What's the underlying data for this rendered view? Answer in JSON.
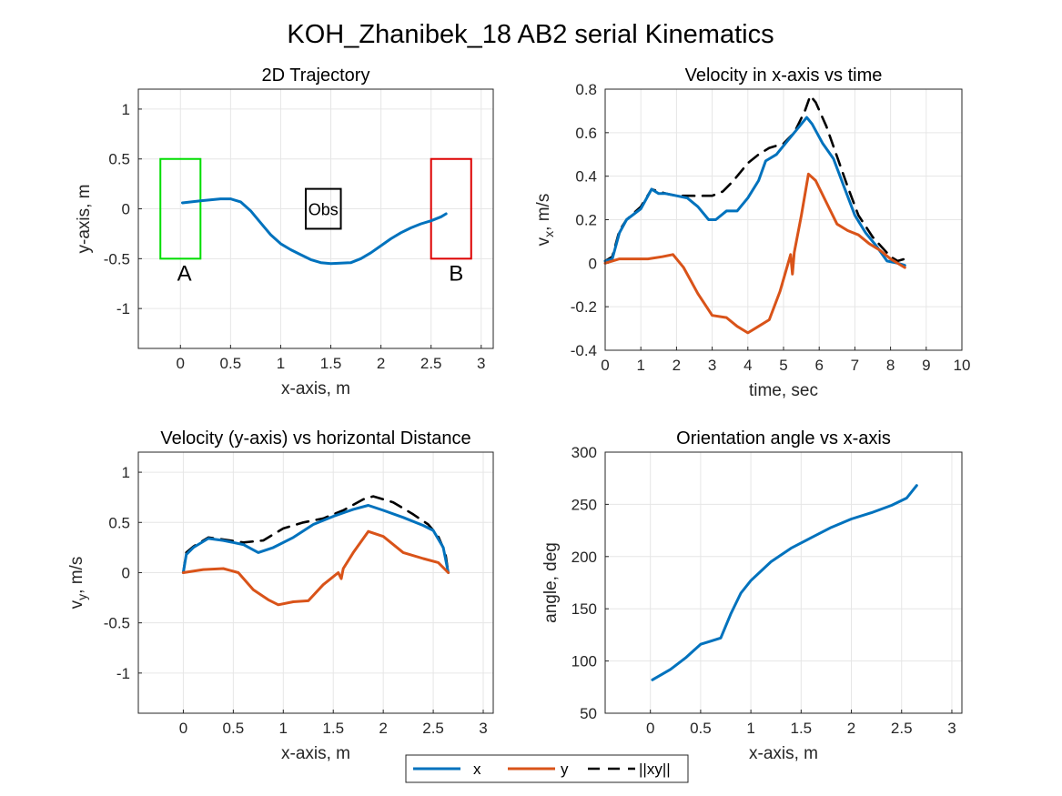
{
  "figure": {
    "suptitle": "KOH_Zhanibek_18    AB2    serial    Kinematics"
  },
  "legend": {
    "entries": [
      {
        "label": "x",
        "color": "#0072BD",
        "style": "solid"
      },
      {
        "label": "y",
        "color": "#D95319",
        "style": "solid"
      },
      {
        "label": "||xy||",
        "color": "#000000",
        "style": "dashed"
      }
    ]
  },
  "chart_data": [
    {
      "id": "traj",
      "type": "line",
      "title": "2D Trajectory",
      "xlabel": "x-axis, m",
      "ylabel": "y-axis, m",
      "xlim": [
        -0.42,
        3.12
      ],
      "ylim": [
        -1.4,
        1.2
      ],
      "xticks": [
        0,
        0.5,
        1,
        1.5,
        2,
        2.5,
        3
      ],
      "xticklabels": [
        "0",
        "0.5",
        "1",
        "1.5",
        "2",
        "2.5",
        "3"
      ],
      "yticks": [
        -1,
        -0.5,
        0,
        0.5,
        1
      ],
      "yticklabels": [
        "-1",
        "-0.5",
        "0",
        "0.5",
        "1"
      ],
      "grid": true,
      "series": [
        {
          "key": "x",
          "color": "#0072BD",
          "dashed": false,
          "points": [
            [
              0.02,
              0.06
            ],
            [
              0.2,
              0.08
            ],
            [
              0.4,
              0.1
            ],
            [
              0.5,
              0.1
            ],
            [
              0.6,
              0.07
            ],
            [
              0.7,
              -0.02
            ],
            [
              0.8,
              -0.14
            ],
            [
              0.9,
              -0.26
            ],
            [
              1.0,
              -0.35
            ],
            [
              1.1,
              -0.41
            ],
            [
              1.2,
              -0.46
            ],
            [
              1.3,
              -0.51
            ],
            [
              1.4,
              -0.54
            ],
            [
              1.5,
              -0.55
            ],
            [
              1.7,
              -0.54
            ],
            [
              1.8,
              -0.5
            ],
            [
              1.9,
              -0.44
            ],
            [
              2.0,
              -0.37
            ],
            [
              2.1,
              -0.3
            ],
            [
              2.2,
              -0.24
            ],
            [
              2.3,
              -0.19
            ],
            [
              2.4,
              -0.15
            ],
            [
              2.5,
              -0.12
            ],
            [
              2.6,
              -0.08
            ],
            [
              2.65,
              -0.05
            ]
          ]
        }
      ],
      "regions": [
        {
          "label": "A",
          "x": [
            -0.2,
            0.2
          ],
          "y": [
            -0.5,
            0.5
          ],
          "color": "#00DD00",
          "label_pos": [
            0.04,
            -0.63
          ]
        },
        {
          "label": "B",
          "x": [
            2.5,
            2.9
          ],
          "y": [
            -0.5,
            0.5
          ],
          "color": "#DD0000",
          "label_pos": [
            2.75,
            -0.63
          ]
        }
      ],
      "obstacle": {
        "label": "Obs",
        "x": [
          1.25,
          1.6
        ],
        "y": [
          -0.2,
          0.2
        ],
        "color": "#000000"
      }
    },
    {
      "id": "vt",
      "type": "line",
      "title": "Velocity in x-axis vs time",
      "xlabel": "time, sec",
      "ylabel_main": "v",
      "ylabel_sub": "x",
      "ylabel_rest": ", m/s",
      "xlim": [
        0,
        10
      ],
      "ylim": [
        -0.4,
        0.8
      ],
      "xticks": [
        0,
        1,
        2,
        3,
        4,
        5,
        6,
        7,
        8,
        9,
        10
      ],
      "xticklabels": [
        "0",
        "1",
        "2",
        "3",
        "4",
        "5",
        "6",
        "7",
        "8",
        "9",
        "10"
      ],
      "yticks": [
        -0.4,
        -0.2,
        0,
        0.2,
        0.4,
        0.6,
        0.8
      ],
      "yticklabels": [
        "-0.4",
        "-0.2",
        "0",
        "0.2",
        "0.4",
        "0.6",
        "0.8"
      ],
      "grid": true,
      "series": [
        {
          "key": "xy",
          "color": "#000000",
          "dashed": true,
          "points": [
            [
              0,
              0.01
            ],
            [
              0.2,
              0.03
            ],
            [
              0.4,
              0.15
            ],
            [
              0.6,
              0.2
            ],
            [
              1.0,
              0.26
            ],
            [
              1.3,
              0.34
            ],
            [
              1.5,
              0.33
            ],
            [
              1.7,
              0.32
            ],
            [
              2.0,
              0.31
            ],
            [
              2.5,
              0.31
            ],
            [
              3.0,
              0.31
            ],
            [
              3.3,
              0.33
            ],
            [
              3.6,
              0.38
            ],
            [
              4.0,
              0.46
            ],
            [
              4.3,
              0.5
            ],
            [
              4.6,
              0.53
            ],
            [
              5.0,
              0.55
            ],
            [
              5.3,
              0.6
            ],
            [
              5.6,
              0.7
            ],
            [
              5.75,
              0.77
            ],
            [
              5.9,
              0.74
            ],
            [
              6.2,
              0.63
            ],
            [
              6.5,
              0.49
            ],
            [
              6.8,
              0.35
            ],
            [
              7.1,
              0.22
            ],
            [
              7.5,
              0.12
            ],
            [
              8.0,
              0.03
            ],
            [
              8.2,
              0.01
            ],
            [
              8.4,
              0.02
            ]
          ]
        },
        {
          "key": "x",
          "color": "#0072BD",
          "dashed": false,
          "points": [
            [
              0,
              0.01
            ],
            [
              0.2,
              0.02
            ],
            [
              0.4,
              0.14
            ],
            [
              0.6,
              0.2
            ],
            [
              1.0,
              0.25
            ],
            [
              1.3,
              0.34
            ],
            [
              1.5,
              0.32
            ],
            [
              1.7,
              0.32
            ],
            [
              2.0,
              0.31
            ],
            [
              2.3,
              0.3
            ],
            [
              2.6,
              0.26
            ],
            [
              2.9,
              0.2
            ],
            [
              3.1,
              0.2
            ],
            [
              3.4,
              0.24
            ],
            [
              3.7,
              0.24
            ],
            [
              4.0,
              0.3
            ],
            [
              4.3,
              0.38
            ],
            [
              4.5,
              0.47
            ],
            [
              4.8,
              0.5
            ],
            [
              5.1,
              0.56
            ],
            [
              5.4,
              0.62
            ],
            [
              5.65,
              0.67
            ],
            [
              5.8,
              0.64
            ],
            [
              6.1,
              0.55
            ],
            [
              6.4,
              0.48
            ],
            [
              6.7,
              0.35
            ],
            [
              7.0,
              0.22
            ],
            [
              7.3,
              0.14
            ],
            [
              7.6,
              0.08
            ],
            [
              7.9,
              0.01
            ],
            [
              8.2,
              0.0
            ],
            [
              8.4,
              -0.01
            ]
          ]
        },
        {
          "key": "y",
          "color": "#D95319",
          "dashed": false,
          "points": [
            [
              0,
              0.0
            ],
            [
              0.4,
              0.02
            ],
            [
              0.8,
              0.02
            ],
            [
              1.2,
              0.02
            ],
            [
              1.6,
              0.03
            ],
            [
              1.9,
              0.04
            ],
            [
              2.2,
              -0.02
            ],
            [
              2.6,
              -0.14
            ],
            [
              3.0,
              -0.24
            ],
            [
              3.4,
              -0.25
            ],
            [
              3.7,
              -0.29
            ],
            [
              4.0,
              -0.32
            ],
            [
              4.3,
              -0.29
            ],
            [
              4.6,
              -0.26
            ],
            [
              4.9,
              -0.13
            ],
            [
              5.2,
              0.04
            ],
            [
              5.25,
              -0.05
            ],
            [
              5.3,
              0.05
            ],
            [
              5.5,
              0.22
            ],
            [
              5.7,
              0.41
            ],
            [
              5.9,
              0.38
            ],
            [
              6.2,
              0.28
            ],
            [
              6.5,
              0.18
            ],
            [
              6.8,
              0.15
            ],
            [
              7.1,
              0.13
            ],
            [
              7.4,
              0.09
            ],
            [
              7.7,
              0.06
            ],
            [
              8.0,
              0.02
            ],
            [
              8.4,
              -0.02
            ]
          ]
        }
      ]
    },
    {
      "id": "vd",
      "type": "line",
      "title": "Velocity (y-axis) vs horizontal Distance",
      "xlabel": "x-axis, m",
      "ylabel_main": "v",
      "ylabel_sub": "y",
      "ylabel_rest": ", m/s",
      "xlim": [
        -0.45,
        3.1
      ],
      "ylim": [
        -1.4,
        1.2
      ],
      "xticks": [
        0,
        0.5,
        1,
        1.5,
        2,
        2.5,
        3
      ],
      "xticklabels": [
        "0",
        "0.5",
        "1",
        "1.5",
        "2",
        "2.5",
        "3"
      ],
      "yticks": [
        -1,
        -0.5,
        0,
        0.5,
        1
      ],
      "yticklabels": [
        "-1",
        "-0.5",
        "0",
        "0.5",
        "1"
      ],
      "grid": true,
      "series": [
        {
          "key": "xy",
          "color": "#000000",
          "dashed": true,
          "points": [
            [
              0.0,
              0.0
            ],
            [
              0.03,
              0.2
            ],
            [
              0.1,
              0.26
            ],
            [
              0.25,
              0.35
            ],
            [
              0.4,
              0.33
            ],
            [
              0.6,
              0.3
            ],
            [
              0.8,
              0.32
            ],
            [
              1.0,
              0.44
            ],
            [
              1.2,
              0.5
            ],
            [
              1.4,
              0.54
            ],
            [
              1.6,
              0.62
            ],
            [
              1.8,
              0.73
            ],
            [
              1.9,
              0.76
            ],
            [
              2.1,
              0.7
            ],
            [
              2.3,
              0.58
            ],
            [
              2.45,
              0.48
            ],
            [
              2.55,
              0.36
            ],
            [
              2.62,
              0.2
            ],
            [
              2.65,
              0.0
            ]
          ]
        },
        {
          "key": "x",
          "color": "#0072BD",
          "dashed": false,
          "points": [
            [
              0.0,
              0.0
            ],
            [
              0.03,
              0.18
            ],
            [
              0.1,
              0.25
            ],
            [
              0.25,
              0.34
            ],
            [
              0.4,
              0.32
            ],
            [
              0.6,
              0.28
            ],
            [
              0.75,
              0.2
            ],
            [
              0.9,
              0.25
            ],
            [
              1.1,
              0.35
            ],
            [
              1.3,
              0.48
            ],
            [
              1.5,
              0.56
            ],
            [
              1.7,
              0.63
            ],
            [
              1.85,
              0.67
            ],
            [
              2.0,
              0.62
            ],
            [
              2.2,
              0.55
            ],
            [
              2.4,
              0.47
            ],
            [
              2.5,
              0.42
            ],
            [
              2.6,
              0.25
            ],
            [
              2.65,
              0.0
            ]
          ]
        },
        {
          "key": "y",
          "color": "#D95319",
          "dashed": false,
          "points": [
            [
              0.0,
              0.0
            ],
            [
              0.2,
              0.03
            ],
            [
              0.4,
              0.04
            ],
            [
              0.55,
              0.0
            ],
            [
              0.7,
              -0.17
            ],
            [
              0.85,
              -0.27
            ],
            [
              0.95,
              -0.32
            ],
            [
              1.1,
              -0.29
            ],
            [
              1.25,
              -0.28
            ],
            [
              1.4,
              -0.12
            ],
            [
              1.55,
              0.0
            ],
            [
              1.58,
              -0.06
            ],
            [
              1.6,
              0.04
            ],
            [
              1.7,
              0.2
            ],
            [
              1.85,
              0.41
            ],
            [
              2.0,
              0.36
            ],
            [
              2.2,
              0.2
            ],
            [
              2.4,
              0.14
            ],
            [
              2.55,
              0.1
            ],
            [
              2.65,
              0.0
            ]
          ]
        }
      ]
    },
    {
      "id": "ang",
      "type": "line",
      "title": "Orientation angle vs x-axis",
      "xlabel": "x-axis, m",
      "ylabel": "angle, deg",
      "xlim": [
        -0.45,
        3.1
      ],
      "ylim": [
        50,
        300
      ],
      "xticks": [
        0,
        0.5,
        1,
        1.5,
        2,
        2.5,
        3
      ],
      "xticklabels": [
        "0",
        "0.5",
        "1",
        "1.5",
        "2",
        "2.5",
        "3"
      ],
      "yticks": [
        50,
        100,
        150,
        200,
        250,
        300
      ],
      "yticklabels": [
        "50",
        "100",
        "150",
        "200",
        "250",
        "300"
      ],
      "grid": true,
      "series": [
        {
          "key": "x",
          "color": "#0072BD",
          "dashed": false,
          "points": [
            [
              0.02,
              82
            ],
            [
              0.2,
              92
            ],
            [
              0.35,
              103
            ],
            [
              0.5,
              116
            ],
            [
              0.6,
              119
            ],
            [
              0.7,
              122
            ],
            [
              0.8,
              145
            ],
            [
              0.9,
              165
            ],
            [
              1.0,
              177
            ],
            [
              1.2,
              195
            ],
            [
              1.4,
              208
            ],
            [
              1.6,
              218
            ],
            [
              1.8,
              228
            ],
            [
              2.0,
              236
            ],
            [
              2.2,
              242
            ],
            [
              2.4,
              249
            ],
            [
              2.55,
              256
            ],
            [
              2.65,
              268
            ]
          ]
        }
      ]
    }
  ]
}
